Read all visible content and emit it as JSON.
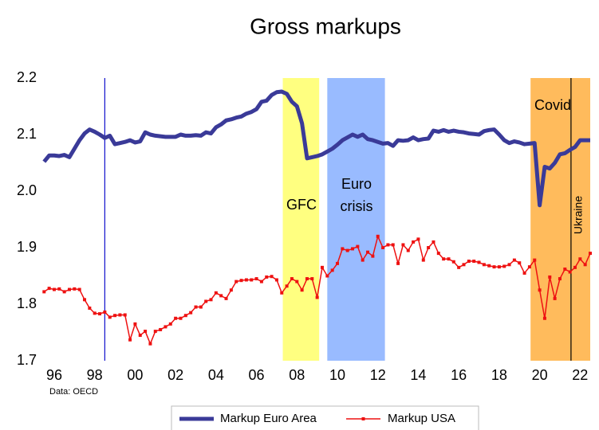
{
  "chart_data": {
    "type": "line",
    "title": "Gross markups",
    "x": [
      1995.5,
      1995.75,
      1996,
      1996.25,
      1996.5,
      1996.75,
      1997,
      1997.25,
      1997.5,
      1997.75,
      1998,
      1998.25,
      1998.5,
      1998.75,
      1999,
      1999.25,
      1999.5,
      1999.75,
      2000,
      2000.25,
      2000.5,
      2000.75,
      2001,
      2001.25,
      2001.5,
      2001.75,
      2002,
      2002.25,
      2002.5,
      2002.75,
      2003,
      2003.25,
      2003.5,
      2003.75,
      2004,
      2004.25,
      2004.5,
      2004.75,
      2005,
      2005.25,
      2005.5,
      2005.75,
      2006,
      2006.25,
      2006.5,
      2006.75,
      2007,
      2007.25,
      2007.5,
      2007.75,
      2008,
      2008.25,
      2008.5,
      2008.75,
      2009,
      2009.25,
      2009.5,
      2009.75,
      2010,
      2010.25,
      2010.5,
      2010.75,
      2011,
      2011.25,
      2011.5,
      2011.75,
      2012,
      2012.25,
      2012.5,
      2012.75,
      2013,
      2013.25,
      2013.5,
      2013.75,
      2014,
      2014.25,
      2014.5,
      2014.75,
      2015,
      2015.25,
      2015.5,
      2015.75,
      2016,
      2016.25,
      2016.5,
      2016.75,
      2017,
      2017.25,
      2017.5,
      2017.75,
      2018,
      2018.25,
      2018.5,
      2018.75,
      2019,
      2019.25,
      2019.5,
      2019.75,
      2020,
      2020.25,
      2020.5,
      2020.75,
      2021,
      2021.25,
      2021.5,
      2021.75,
      2022,
      2022.25,
      2022.5
    ],
    "series": [
      {
        "name": "Markup Euro Area",
        "color": "#3a3a98",
        "values": [
          2.052,
          2.063,
          2.063,
          2.062,
          2.064,
          2.06,
          2.075,
          2.09,
          2.102,
          2.109,
          2.105,
          2.1,
          2.094,
          2.098,
          2.083,
          2.085,
          2.087,
          2.09,
          2.086,
          2.088,
          2.104,
          2.1,
          2.098,
          2.097,
          2.096,
          2.096,
          2.096,
          2.1,
          2.098,
          2.098,
          2.099,
          2.098,
          2.104,
          2.102,
          2.113,
          2.118,
          2.125,
          2.127,
          2.13,
          2.132,
          2.137,
          2.14,
          2.145,
          2.158,
          2.16,
          2.17,
          2.175,
          2.176,
          2.172,
          2.158,
          2.15,
          2.12,
          2.058,
          2.06,
          2.062,
          2.065,
          2.07,
          2.075,
          2.082,
          2.09,
          2.095,
          2.1,
          2.096,
          2.1,
          2.092,
          2.09,
          2.087,
          2.084,
          2.085,
          2.08,
          2.09,
          2.089,
          2.09,
          2.095,
          2.09,
          2.092,
          2.093,
          2.107,
          2.105,
          2.108,
          2.105,
          2.107,
          2.105,
          2.104,
          2.102,
          2.101,
          2.1,
          2.106,
          2.108,
          2.109,
          2.1,
          2.09,
          2.085,
          2.088,
          2.086,
          2.083,
          2.084,
          2.085,
          1.975,
          2.043,
          2.04,
          2.05,
          2.065,
          2.067,
          2.073,
          2.078,
          2.09,
          2.09,
          2.09
        ]
      },
      {
        "name": "Markup USA",
        "color": "#ee1111",
        "values": [
          1.822,
          1.828,
          1.826,
          1.827,
          1.822,
          1.826,
          1.827,
          1.826,
          1.808,
          1.793,
          1.784,
          1.783,
          1.786,
          1.777,
          1.78,
          1.781,
          1.781,
          1.737,
          1.765,
          1.745,
          1.752,
          1.73,
          1.752,
          1.755,
          1.76,
          1.765,
          1.775,
          1.775,
          1.78,
          1.785,
          1.795,
          1.795,
          1.805,
          1.808,
          1.82,
          1.815,
          1.81,
          1.825,
          1.84,
          1.842,
          1.843,
          1.843,
          1.845,
          1.84,
          1.848,
          1.849,
          1.843,
          1.82,
          1.832,
          1.845,
          1.84,
          1.825,
          1.845,
          1.845,
          1.812,
          1.865,
          1.85,
          1.86,
          1.872,
          1.898,
          1.895,
          1.898,
          1.902,
          1.878,
          1.892,
          1.885,
          1.92,
          1.9,
          1.905,
          1.905,
          1.872,
          1.905,
          1.895,
          1.91,
          1.915,
          1.878,
          1.9,
          1.91,
          1.89,
          1.88,
          1.88,
          1.875,
          1.865,
          1.87,
          1.876,
          1.876,
          1.874,
          1.87,
          1.868,
          1.866,
          1.866,
          1.867,
          1.87,
          1.878,
          1.873,
          1.855,
          1.866,
          1.878,
          1.825,
          1.775,
          1.848,
          1.81,
          1.845,
          1.862,
          1.857,
          1.865,
          1.88,
          1.87,
          1.89
        ]
      }
    ],
    "xlim": [
      1995.37,
      2022.5
    ],
    "xticks": [
      {
        "value": 1996,
        "label": "96"
      },
      {
        "value": 1998,
        "label": "98"
      },
      {
        "value": 2000,
        "label": "00"
      },
      {
        "value": 2002,
        "label": "02"
      },
      {
        "value": 2004,
        "label": "04"
      },
      {
        "value": 2006,
        "label": "06"
      },
      {
        "value": 2008,
        "label": "08"
      },
      {
        "value": 2010,
        "label": "10"
      },
      {
        "value": 2012,
        "label": "12"
      },
      {
        "value": 2014,
        "label": "14"
      },
      {
        "value": 2016,
        "label": "16"
      },
      {
        "value": 2018,
        "label": "18"
      },
      {
        "value": 2020,
        "label": "20"
      },
      {
        "value": 2022,
        "label": "22"
      }
    ],
    "ylim": [
      1.7,
      2.2
    ],
    "yticks": [
      {
        "value": 1.7,
        "label": "1.7"
      },
      {
        "value": 1.8,
        "label": "1.8"
      },
      {
        "value": 1.9,
        "label": "1.9"
      },
      {
        "value": 2.0,
        "label": "2.0"
      },
      {
        "value": 2.1,
        "label": "2.1"
      },
      {
        "value": 2.2,
        "label": "2.2"
      }
    ],
    "periods": [
      {
        "label": [
          "GFC"
        ],
        "start": 2007.3,
        "end": 2009.1,
        "color": "#ffff80"
      },
      {
        "label": [
          "Euro",
          "crisis"
        ],
        "start": 2009.5,
        "end": 2012.35,
        "color": "#99bbff"
      },
      {
        "label": [
          "Covid"
        ],
        "start": 2019.55,
        "end": 2022.5,
        "color": "#ffbb5c"
      }
    ],
    "vlines": [
      {
        "x": 1998.5,
        "color": "#1010cc"
      },
      {
        "x": 2021.55,
        "color": "#000000",
        "label": "Ukraine"
      }
    ],
    "source": "Data: OECD"
  }
}
